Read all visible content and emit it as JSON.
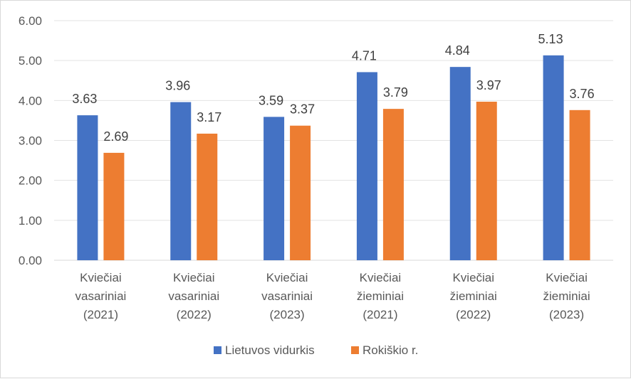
{
  "chart_data": {
    "type": "bar",
    "categories": [
      [
        "Kviečiai",
        "vasariniai",
        "(2021)"
      ],
      [
        "Kviečiai",
        "vasariniai",
        "(2022)"
      ],
      [
        "Kviečiai",
        "vasariniai",
        "(2023)"
      ],
      [
        "Kviečiai",
        "žieminiai",
        "(2021)"
      ],
      [
        "Kviečiai",
        "žieminiai",
        "(2022)"
      ],
      [
        "Kviečiai",
        "žieminiai",
        "(2023)"
      ]
    ],
    "series": [
      {
        "name": "Lietuvos vidurkis",
        "color": "#4472C4",
        "values": [
          3.63,
          3.96,
          3.59,
          4.71,
          4.84,
          5.13
        ]
      },
      {
        "name": "Rokiškio r.",
        "color": "#ED7D31",
        "values": [
          2.69,
          3.17,
          3.37,
          3.79,
          3.97,
          3.76
        ]
      }
    ],
    "ylim": [
      0,
      6
    ],
    "yticks": [
      "0.00",
      "1.00",
      "2.00",
      "3.00",
      "4.00",
      "5.00",
      "6.00"
    ],
    "ytick_values": [
      0,
      1,
      2,
      3,
      4,
      5,
      6
    ],
    "grid": true,
    "legend_position": "bottom",
    "title": "",
    "xlabel": "",
    "ylabel": ""
  }
}
